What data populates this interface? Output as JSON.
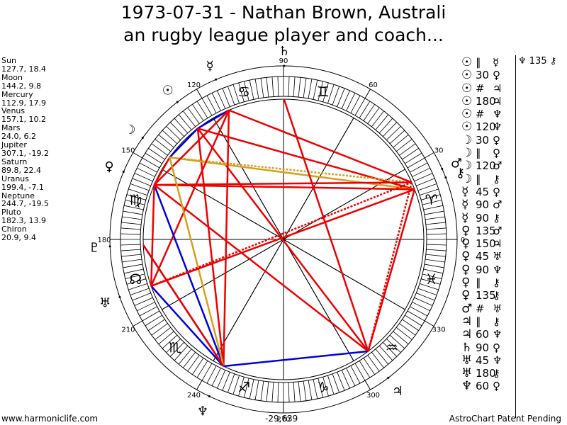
{
  "title_line1": "1973-07-31 - Nathan Brown, Australi",
  "title_line2": "an rugby league player and coach...",
  "planets": [
    {
      "name": "Sun",
      "glyph": "☉",
      "values": "127.7, 18.4",
      "lon": 127.7
    },
    {
      "name": "Moon",
      "glyph": "☽",
      "values": "144.2, 9.8",
      "lon": 144.2
    },
    {
      "name": "Mercury",
      "glyph": "☿",
      "values": "112.9, 17.9",
      "lon": 112.9
    },
    {
      "name": "Venus",
      "glyph": "♀",
      "values": "157.1, 10.2",
      "lon": 157.1
    },
    {
      "name": "Mars",
      "glyph": "♂",
      "values": "24.0, 6.2",
      "lon": 24.0
    },
    {
      "name": "Jupiter",
      "glyph": "♃",
      "values": "307.1, -19.2",
      "lon": 307.1
    },
    {
      "name": "Saturn",
      "glyph": "♄",
      "values": "89.8, 22.4",
      "lon": 89.8
    },
    {
      "name": "Uranus",
      "glyph": "♅",
      "values": "199.4, -7.1",
      "lon": 199.4
    },
    {
      "name": "Neptune",
      "glyph": "♆",
      "values": "244.7, -19.5",
      "lon": 244.7
    },
    {
      "name": "Pluto",
      "glyph": "♇",
      "values": "182.3, 13.9",
      "lon": 182.3
    },
    {
      "name": "Chiron",
      "glyph": "⚷",
      "values": "20.9, 9.4",
      "lon": 20.9
    }
  ],
  "wheel": {
    "degree_labels": [
      {
        "deg": 0,
        "text": "0"
      },
      {
        "deg": 30,
        "text": "30"
      },
      {
        "deg": 60,
        "text": "60"
      },
      {
        "deg": 90,
        "text": "90"
      },
      {
        "deg": 120,
        "text": "120"
      },
      {
        "deg": 150,
        "text": "150"
      },
      {
        "deg": 180,
        "text": "180"
      },
      {
        "deg": 210,
        "text": "210"
      },
      {
        "deg": 240,
        "text": "240"
      },
      {
        "deg": 270,
        "text": "270"
      },
      {
        "deg": 300,
        "text": "300"
      },
      {
        "deg": 330,
        "text": "330"
      }
    ],
    "signs": [
      {
        "deg": 15,
        "glyph": "♈"
      },
      {
        "deg": 75,
        "glyph": "♊"
      },
      {
        "deg": 105,
        "glyph": "♋"
      },
      {
        "deg": 165,
        "glyph": "♍"
      },
      {
        "deg": 195,
        "glyph": "☊"
      },
      {
        "deg": 225,
        "glyph": "♏"
      },
      {
        "deg": 255,
        "glyph": "♐"
      },
      {
        "deg": 285,
        "glyph": "♑"
      },
      {
        "deg": 315,
        "glyph": "♒"
      },
      {
        "deg": 345,
        "glyph": "♓"
      }
    ]
  },
  "aspect_lines": [
    {
      "a": "Sun",
      "b": "Mercury",
      "color": "#0000dd",
      "dash": false
    },
    {
      "a": "Sun",
      "b": "Moon",
      "color": "#0000dd",
      "dash": false
    },
    {
      "a": "Sun",
      "b": "Jupiter",
      "color": "#ee0000",
      "dash": false
    },
    {
      "a": "Sun",
      "b": "Chiron",
      "color": "#ee0000",
      "dash": false
    },
    {
      "a": "Sun",
      "b": "Neptune",
      "color": "#ee0000",
      "dash": false
    },
    {
      "a": "Moon",
      "b": "Chiron",
      "color": "#d4a020",
      "dash": false
    },
    {
      "a": "Moon",
      "b": "Mars",
      "color": "#d4a020",
      "dash": true
    },
    {
      "a": "Moon",
      "b": "Venus",
      "color": "#ee0000",
      "dash": false
    },
    {
      "a": "Mercury",
      "b": "Mars",
      "color": "#ee0000",
      "dash": false
    },
    {
      "a": "Mercury",
      "b": "Venus",
      "color": "#ee0000",
      "dash": false
    },
    {
      "a": "Mercury",
      "b": "Uranus",
      "color": "#ee0000",
      "dash": false
    },
    {
      "a": "Mercury",
      "b": "Neptune",
      "color": "#ee0000",
      "dash": false
    },
    {
      "a": "Venus",
      "b": "Mars",
      "color": "#ee0000",
      "dash": false
    },
    {
      "a": "Venus",
      "b": "Chiron",
      "color": "#ee0000",
      "dash": false
    },
    {
      "a": "Venus",
      "b": "Neptune",
      "color": "#0000dd",
      "dash": false
    },
    {
      "a": "Venus",
      "b": "Uranus",
      "color": "#ee0000",
      "dash": false
    },
    {
      "a": "Venus",
      "b": "Jupiter",
      "color": "#ee0000",
      "dash": false
    },
    {
      "a": "Mars",
      "b": "Uranus",
      "color": "#ee0000",
      "dash": true
    },
    {
      "a": "Mars",
      "b": "Jupiter",
      "color": "#ee0000",
      "dash": true
    },
    {
      "a": "Jupiter",
      "b": "Chiron",
      "color": "#ee0000",
      "dash": false
    },
    {
      "a": "Jupiter",
      "b": "Neptune",
      "color": "#0000dd",
      "dash": false
    },
    {
      "a": "Jupiter",
      "b": "Saturn",
      "color": "#ee0000",
      "dash": false
    },
    {
      "a": "Uranus",
      "b": "Neptune",
      "color": "#0000dd",
      "dash": false
    },
    {
      "a": "Neptune",
      "b": "Pluto",
      "color": "#0000dd",
      "dash": false
    },
    {
      "a": "Moon",
      "b": "Neptune",
      "color": "#d4a020",
      "dash": false
    },
    {
      "a": "Pluto",
      "b": "Neptune",
      "color": "#ee0000",
      "dash": false
    },
    {
      "a": "Uranus",
      "b": "Chiron",
      "color": "#ee0000",
      "dash": false
    }
  ],
  "aspects": [
    {
      "g1": "☉",
      "sym": "∥",
      "g2": "☿"
    },
    {
      "g1": "☉",
      "sym": "30",
      "g2": "♀"
    },
    {
      "g1": "☉",
      "sym": "#",
      "g2": "♃"
    },
    {
      "g1": "☉",
      "sym": "180",
      "g2": "♃"
    },
    {
      "g1": "☉",
      "sym": "#",
      "g2": "♆"
    },
    {
      "g1": "☉",
      "sym": "120",
      "g2": "♆"
    },
    {
      "g1": "☽",
      "sym": "30",
      "g2": "♀"
    },
    {
      "g1": "☽",
      "sym": "∥",
      "g2": "♀"
    },
    {
      "g1": "☽",
      "sym": "120",
      "g2": "♂"
    },
    {
      "g1": "☽",
      "sym": "∥",
      "g2": "⚷"
    },
    {
      "g1": "☿",
      "sym": "45",
      "g2": "♀"
    },
    {
      "g1": "☿",
      "sym": "90",
      "g2": "♂"
    },
    {
      "g1": "☿",
      "sym": "90",
      "g2": "⚷"
    },
    {
      "g1": "♀",
      "sym": "135",
      "g2": "♂"
    },
    {
      "g1": "♀",
      "sym": "150",
      "g2": "♃"
    },
    {
      "g1": "♀",
      "sym": "45",
      "g2": "♅"
    },
    {
      "g1": "♀",
      "sym": "90",
      "g2": "♆"
    },
    {
      "g1": "♀",
      "sym": "∥",
      "g2": "⚷"
    },
    {
      "g1": "♀",
      "sym": "135",
      "g2": "⚷"
    },
    {
      "g1": "♂",
      "sym": "#",
      "g2": "♅"
    },
    {
      "g1": "♃",
      "sym": "∥",
      "g2": "⚷"
    },
    {
      "g1": "♃",
      "sym": "60",
      "g2": "♆"
    },
    {
      "g1": "♄",
      "sym": "90",
      "g2": "♀"
    },
    {
      "g1": "♅",
      "sym": "45",
      "g2": "♆"
    },
    {
      "g1": "♅",
      "sym": "180",
      "g2": "⚷"
    },
    {
      "g1": "♆",
      "sym": "60",
      "g2": "♀"
    }
  ],
  "extra_aspect": "♆ 135 ⚷",
  "footer": {
    "left": "www.harmoniclife.com",
    "mid": "-29,639",
    "right": "AstroChart Patent Pending"
  }
}
